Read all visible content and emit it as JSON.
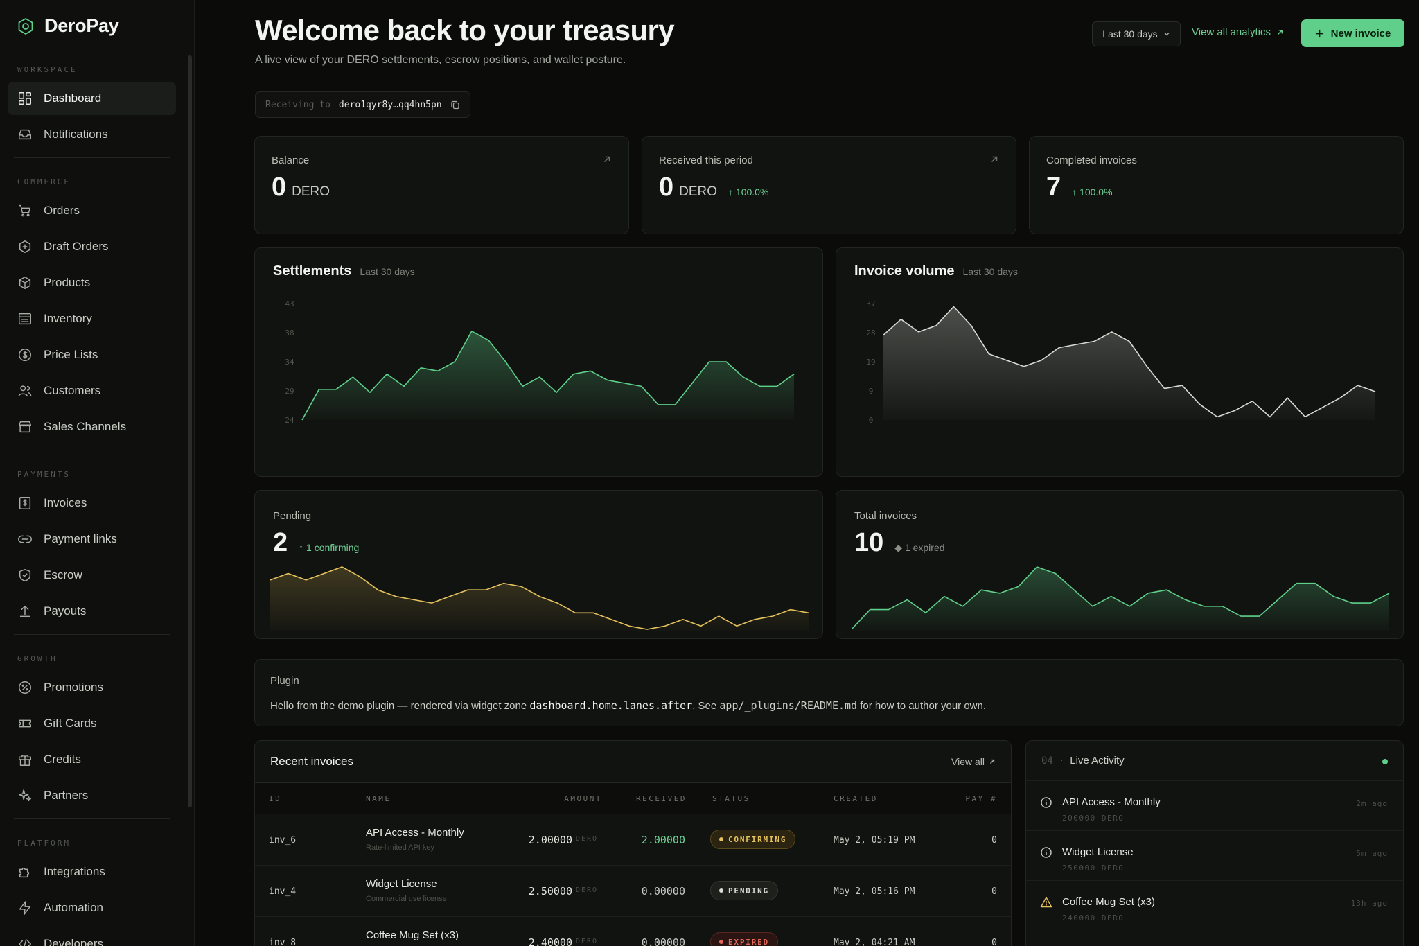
{
  "brand": {
    "name": "DeroPay"
  },
  "sidebar": {
    "sections": [
      {
        "title": "WORKSPACE",
        "items": [
          {
            "label": "Dashboard",
            "icon": "dashboard-icon",
            "active": true
          },
          {
            "label": "Notifications",
            "icon": "inbox-icon"
          }
        ]
      },
      {
        "title": "COMMERCE",
        "items": [
          {
            "label": "Orders",
            "icon": "cart-icon"
          },
          {
            "label": "Draft Orders",
            "icon": "draft-icon"
          },
          {
            "label": "Products",
            "icon": "box-icon"
          },
          {
            "label": "Inventory",
            "icon": "inventory-icon"
          },
          {
            "label": "Price Lists",
            "icon": "dollar-icon"
          },
          {
            "label": "Customers",
            "icon": "users-icon"
          },
          {
            "label": "Sales Channels",
            "icon": "store-icon"
          }
        ]
      },
      {
        "title": "PAYMENTS",
        "items": [
          {
            "label": "Invoices",
            "icon": "invoice-icon"
          },
          {
            "label": "Payment links",
            "icon": "link-icon"
          },
          {
            "label": "Escrow",
            "icon": "shield-icon"
          },
          {
            "label": "Payouts",
            "icon": "upload-icon"
          }
        ]
      },
      {
        "title": "GROWTH",
        "items": [
          {
            "label": "Promotions",
            "icon": "promotion-icon"
          },
          {
            "label": "Gift Cards",
            "icon": "ticket-icon"
          },
          {
            "label": "Credits",
            "icon": "gift-icon"
          },
          {
            "label": "Partners",
            "icon": "sparkle-icon"
          }
        ]
      },
      {
        "title": "PLATFORM",
        "items": [
          {
            "label": "Integrations",
            "icon": "puzzle-icon"
          },
          {
            "label": "Automation",
            "icon": "bolt-icon"
          },
          {
            "label": "Developers",
            "icon": "code-icon"
          }
        ]
      }
    ]
  },
  "header": {
    "title": "Welcome back to your treasury",
    "subtitle": "A live view of your DERO settlements, escrow positions, and wallet posture.",
    "range": "Last 30 days",
    "view_analytics": "View all analytics",
    "new_invoice": "New invoice",
    "receiving_label": "Receiving to",
    "receiving_address": "dero1qyr8y…qq4hn5pn"
  },
  "stats": [
    {
      "label": "Balance",
      "value": "0",
      "unit": "DERO",
      "delta": ""
    },
    {
      "label": "Received this period",
      "value": "0",
      "unit": "DERO",
      "delta": "↑ 100.0%"
    },
    {
      "label": "Completed invoices",
      "value": "7",
      "unit": "",
      "delta": "↑ 100.0%"
    }
  ],
  "settlements": {
    "title": "Settlements",
    "range": "Last 30 days"
  },
  "invoice_volume": {
    "title": "Invoice volume",
    "range": "Last 30 days"
  },
  "pending": {
    "label": "Pending",
    "value": "2",
    "delta": "↑ 1 confirming"
  },
  "total_invoices": {
    "label": "Total invoices",
    "value": "10",
    "delta": "◆ 1 expired"
  },
  "plugin": {
    "label": "Plugin",
    "text_before": "Hello from the demo plugin — rendered via widget zone ",
    "zone": "dashboard.home.lanes.after",
    "text_middle": ". See ",
    "path": "app/_plugins/README.md",
    "text_after": " for how to author your own."
  },
  "recent_invoices": {
    "title": "Recent invoices",
    "view_all": "View all",
    "columns": [
      "ID",
      "NAME",
      "AMOUNT",
      "RECEIVED",
      "STATUS",
      "CREATED",
      "PAY #"
    ],
    "rows": [
      {
        "id": "inv_6",
        "name": "API Access - Monthly",
        "desc": "Rate-limited API key",
        "amount": "2.00000",
        "unit": "DERO",
        "received": "2.00000",
        "status": "CONFIRMING",
        "created": "May 2, 05:19 PM",
        "pay": "0"
      },
      {
        "id": "inv_4",
        "name": "Widget License",
        "desc": "Commercial use license",
        "amount": "2.50000",
        "unit": "DERO",
        "received": "0.00000",
        "status": "PENDING",
        "created": "May 2, 05:16 PM",
        "pay": "0"
      },
      {
        "id": "inv_8",
        "name": "Coffee Mug Set (x3)",
        "desc": "",
        "amount": "2.40000",
        "unit": "DERO",
        "received": "0.00000",
        "status": "EXPIRED",
        "created": "May 2, 04:21 AM",
        "pay": "0"
      }
    ]
  },
  "live_activity": {
    "num": "04",
    "sep": "·",
    "title": "Live Activity",
    "items": [
      {
        "name": "API Access - Monthly",
        "sub": "200000 DERO",
        "time": "2m ago",
        "icon": "info-icon"
      },
      {
        "name": "Widget License",
        "sub": "250000 DERO",
        "time": "5m ago",
        "icon": "info-icon"
      },
      {
        "name": "Coffee Mug Set (x3)",
        "sub": "240000 DERO",
        "time": "13h ago",
        "icon": "warning-icon"
      }
    ]
  },
  "colors": {
    "accent": "#5fcf8a",
    "pending": "#e7c35d",
    "expired": "#e2685a",
    "volume": "#d8dad4"
  },
  "chart_data": [
    {
      "type": "area",
      "title": "Settlements",
      "subtitle": "Last 30 days",
      "yticks": [
        "43",
        "38",
        "34",
        "29",
        "24"
      ],
      "ylim": [
        24,
        43
      ],
      "values": [
        24,
        29,
        29,
        31,
        28.5,
        31.5,
        29.5,
        32.5,
        32,
        33.5,
        38.5,
        37,
        33.5,
        29.5,
        31,
        28.5,
        31.5,
        32,
        30.5,
        30,
        29.5,
        26.5,
        26.5,
        30,
        33.5,
        33.5,
        31,
        29.5,
        29.5,
        31.5
      ],
      "color": "#5fcf8a"
    },
    {
      "type": "area",
      "title": "Invoice volume",
      "subtitle": "Last 30 days",
      "yticks": [
        "37",
        "28",
        "19",
        "9",
        "0"
      ],
      "ylim": [
        0,
        37
      ],
      "values": [
        27,
        32,
        28,
        30,
        36,
        30,
        21,
        19,
        17,
        19,
        23,
        24,
        25,
        28,
        25,
        17,
        10,
        11,
        5,
        1,
        3,
        6,
        1,
        7,
        1,
        4,
        7,
        11,
        9
      ],
      "color": "#d8dad4"
    },
    {
      "type": "area",
      "title": "Pending",
      "values": [
        15,
        17,
        15,
        17,
        19,
        16,
        12,
        10,
        9,
        8,
        10,
        12,
        12,
        14,
        13,
        10,
        8,
        5,
        5,
        3,
        1,
        0,
        1,
        3,
        1,
        4,
        1,
        3,
        4,
        6,
        5
      ],
      "color": "#e7c35d"
    },
    {
      "type": "area",
      "title": "Total invoices",
      "values": [
        0,
        6,
        6,
        9,
        5,
        10,
        7,
        12,
        11,
        13,
        19,
        17,
        12,
        7,
        10,
        7,
        11,
        12,
        9,
        7,
        7,
        4,
        4,
        9,
        14,
        14,
        10,
        8,
        8,
        11
      ],
      "color": "#5fcf8a"
    }
  ]
}
